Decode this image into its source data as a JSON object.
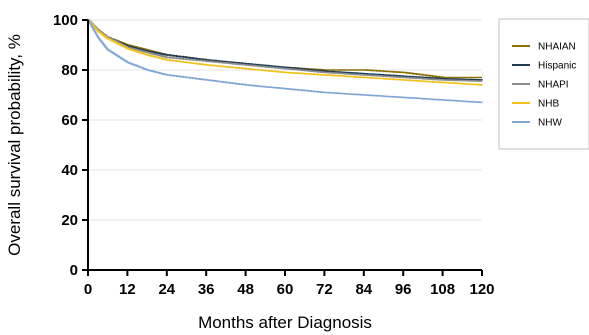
{
  "chart_data": {
    "type": "line",
    "xlabel": "Months after Diagnosis",
    "ylabel": "Overall survival probability, %",
    "xlim": [
      0,
      120
    ],
    "ylim": [
      0,
      100
    ],
    "x_ticks": [
      "0",
      "12",
      "24",
      "36",
      "48",
      "60",
      "72",
      "84",
      "96",
      "108",
      "120"
    ],
    "y_ticks": [
      "0",
      "20",
      "40",
      "60",
      "80",
      "100"
    ],
    "grid": "horizontal",
    "legend_position": "right",
    "x": [
      0,
      3,
      6,
      12,
      18,
      24,
      36,
      48,
      60,
      72,
      84,
      96,
      108,
      120
    ],
    "series": [
      {
        "name": "NHAIAN",
        "color": "#8B6F00",
        "values": [
          100,
          96,
          93,
          90,
          88,
          86,
          84,
          82,
          81,
          80,
          80,
          79,
          77,
          77
        ]
      },
      {
        "name": "Hispanic",
        "color": "#1F3B57",
        "values": [
          100,
          96,
          93,
          89.5,
          87.5,
          86,
          84,
          82.5,
          81,
          79.5,
          78.5,
          77.5,
          76.5,
          76
        ]
      },
      {
        "name": "NHAPI",
        "color": "#8C8C8C",
        "values": [
          100,
          96,
          93,
          89,
          87,
          85,
          83.5,
          82,
          80.5,
          79,
          78,
          77,
          76,
          75.5
        ]
      },
      {
        "name": "NHB",
        "color": "#F0C21A",
        "values": [
          100,
          95.5,
          92.5,
          88.5,
          86,
          84,
          82,
          80.5,
          79,
          78,
          77,
          76,
          75,
          74
        ]
      },
      {
        "name": "NHW",
        "color": "#7FA7D6",
        "values": [
          100,
          93,
          88,
          83,
          80,
          78,
          76,
          74,
          72.5,
          71,
          70,
          69,
          68,
          67
        ]
      }
    ]
  }
}
